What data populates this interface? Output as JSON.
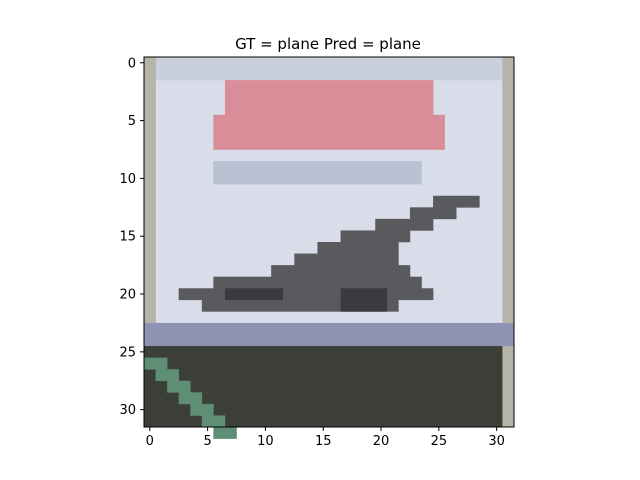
{
  "chart_data": {
    "type": "image",
    "title": "GT = plane Pred = plane",
    "xlabel": "",
    "ylabel": "",
    "x_ticks": [
      0,
      5,
      10,
      15,
      20,
      25,
      30
    ],
    "y_ticks": [
      0,
      5,
      10,
      15,
      20,
      25,
      30
    ],
    "xlim": [
      -0.5,
      31.5
    ],
    "ylim": [
      31.5,
      -0.5
    ],
    "grid": false,
    "image": {
      "width": 32,
      "height": 32,
      "regions": [
        {
          "label": "frame-border",
          "color": "#b4b4a8"
        },
        {
          "label": "sky-background",
          "color": "#d8dde9"
        },
        {
          "label": "sky-top-band",
          "color": "#c9cfdc"
        },
        {
          "label": "red-text-band",
          "color": "#d98d99"
        },
        {
          "label": "blue-grey-band",
          "color": "#b9c2d3"
        },
        {
          "label": "plane-body",
          "color": "#5a5a5e"
        },
        {
          "label": "plane-shadow",
          "color": "#3a3a40"
        },
        {
          "label": "horizon-blue",
          "color": "#8e93b3"
        },
        {
          "label": "ground-dark",
          "color": "#3c3e38"
        },
        {
          "label": "ground-green-stripe",
          "color": "#5e8f74"
        }
      ]
    }
  }
}
